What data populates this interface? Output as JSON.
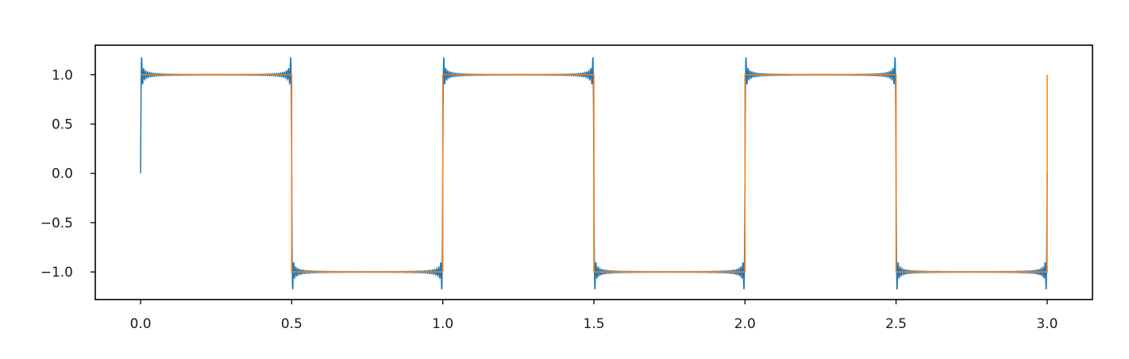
{
  "chart_data": {
    "type": "line",
    "title": "",
    "xlabel": "",
    "ylabel": "",
    "xlim": [
      -0.15,
      3.15
    ],
    "ylim": [
      -1.28,
      1.3
    ],
    "xticks": [
      0.0,
      0.5,
      1.0,
      1.5,
      2.0,
      2.5,
      3.0
    ],
    "xtick_labels": [
      "0.0",
      "0.5",
      "1.0",
      "1.5",
      "2.0",
      "2.5",
      "3.0"
    ],
    "yticks": [
      1.0,
      0.5,
      0.0,
      -0.5,
      -1.0
    ],
    "ytick_labels": [
      "1.0",
      "0.5",
      "0.0",
      "−0.5",
      "−1.0"
    ],
    "grid": false,
    "legend": "none",
    "series": [
      {
        "description": "Fourier series approximation of a square wave with period 1 over 0 to 3 (Gibbs ringing near jumps, starts and ends at 0)",
        "color": "#1f77b4",
        "x_range": [
          0,
          3
        ],
        "period": 1,
        "terms": 75
      },
      {
        "description": "Ideal square wave of period 1: +1 on first half-period, -1 on second, ending at +1 at x = 3",
        "color": "#ff7f0e",
        "x_range": [
          0,
          3
        ],
        "period": 1
      }
    ]
  }
}
